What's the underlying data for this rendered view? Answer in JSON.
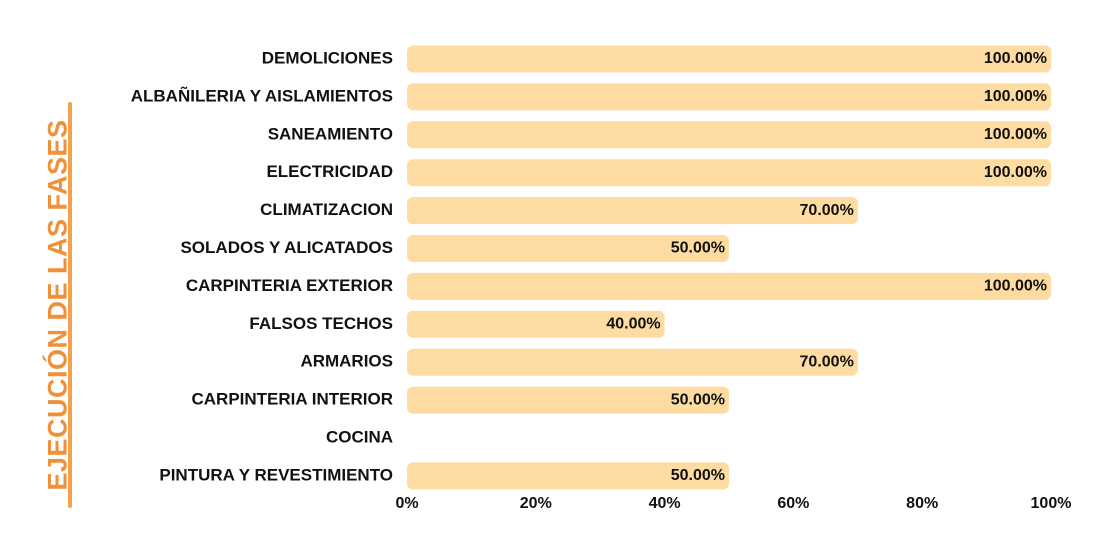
{
  "chart_data": {
    "type": "bar",
    "orientation": "horizontal",
    "title": "",
    "ylabel": "EJECUCIÓN DE LAS FASES",
    "xlabel": "",
    "xlim": [
      0,
      100
    ],
    "x_ticks": [
      "0%",
      "20%",
      "40%",
      "60%",
      "80%",
      "100%"
    ],
    "x_tick_values": [
      0,
      20,
      40,
      60,
      80,
      100
    ],
    "grid": false,
    "bar_color": "#fddba1",
    "title_color": "#f0913a",
    "categories": [
      "DEMOLICIONES",
      "ALBAÑILERIA Y AISLAMIENTOS",
      "SANEAMIENTO",
      "ELECTRICIDAD",
      "CLIMATIZACION",
      "SOLADOS Y ALICATADOS",
      "CARPINTERIA EXTERIOR",
      "FALSOS TECHOS",
      "ARMARIOS",
      "CARPINTERIA INTERIOR",
      "COCINA",
      "PINTURA Y REVESTIMIENTO"
    ],
    "values": [
      100,
      100,
      100,
      100,
      70,
      50,
      100,
      40,
      70,
      50,
      null,
      50
    ],
    "value_labels": [
      "100.00%",
      "100.00%",
      "100.00%",
      "100.00%",
      "70.00%",
      "50.00%",
      "100.00%",
      "40.00%",
      "70.00%",
      "50.00%",
      "",
      "50.00%"
    ]
  }
}
